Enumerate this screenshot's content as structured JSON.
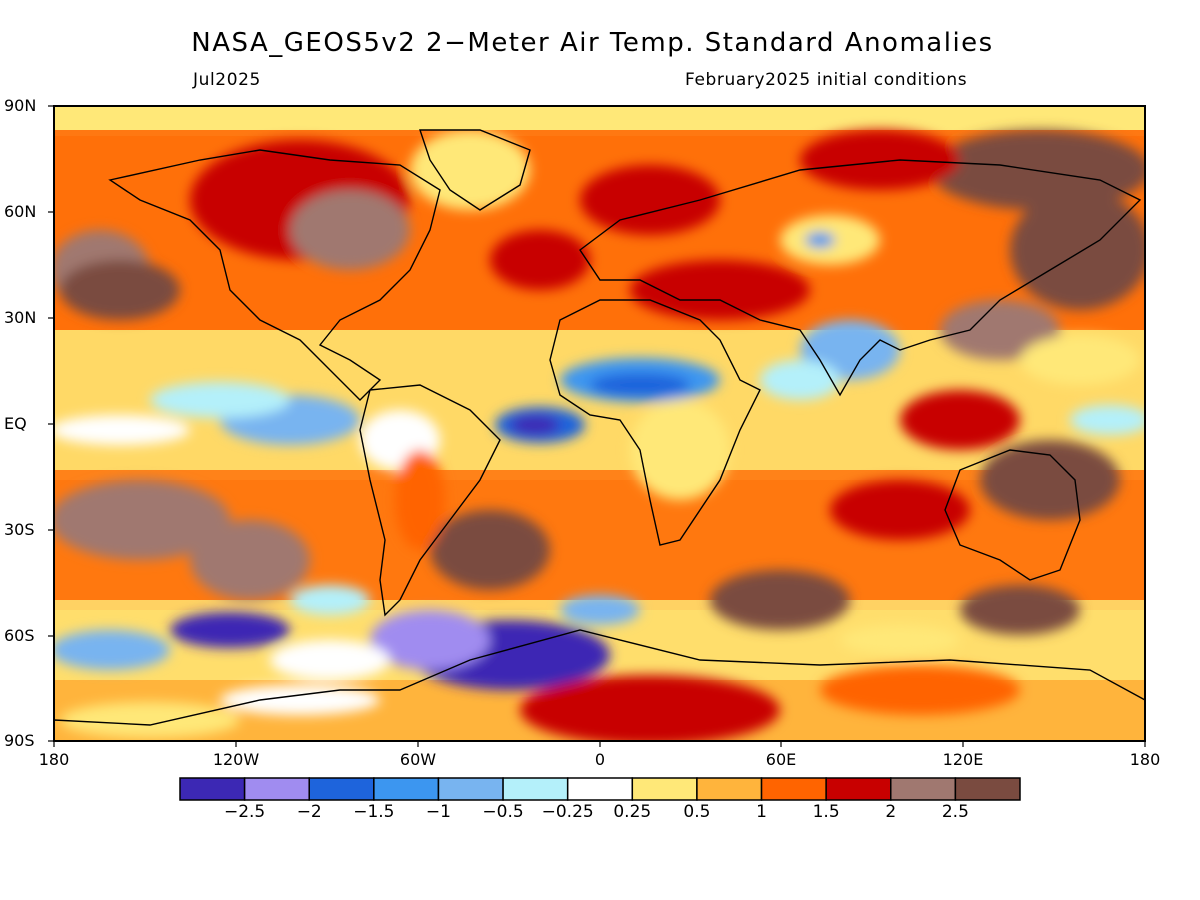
{
  "title": "NASA_GEOS5v2 2−Meter Air Temp. Standard Anomalies",
  "valid_month": "Jul2025",
  "init_conditions": "February2025 initial conditions",
  "lat_labels": [
    "90N",
    "60N",
    "30N",
    "EQ",
    "30S",
    "60S",
    "90S"
  ],
  "lon_labels": [
    "180",
    "120W",
    "60W",
    "0",
    "60E",
    "120E",
    "180"
  ],
  "colorbar": {
    "colors": [
      "#3c28b4",
      "#a08cf0",
      "#1e64dc",
      "#3c96f0",
      "#78b4f0",
      "#b4f0fa",
      "#ffffff",
      "#ffe878",
      "#ffb43c",
      "#ff6400",
      "#c80000",
      "#a07870",
      "#7a4b40"
    ],
    "labels": [
      "−2.5",
      "−2",
      "−1.5",
      "−1",
      "−0.5",
      "−0.25",
      "0.25",
      "0.5",
      "1",
      "1.5",
      "2",
      "2.5"
    ]
  }
}
